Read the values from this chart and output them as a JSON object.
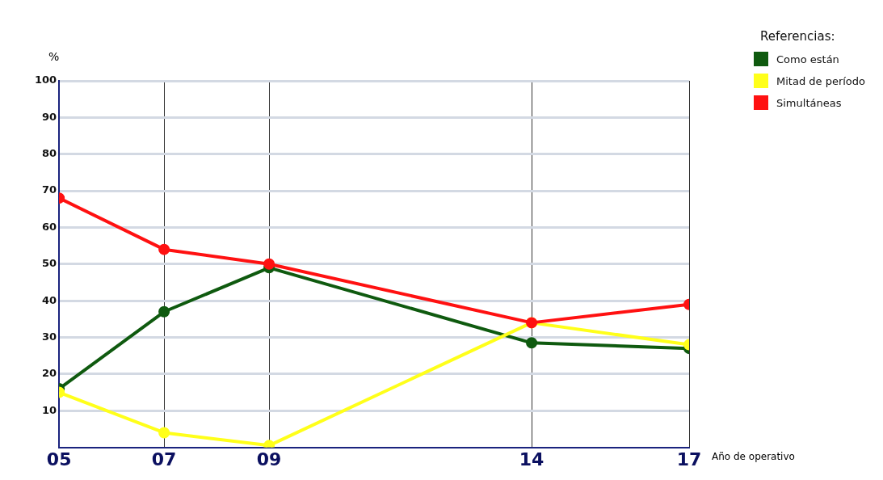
{
  "chart_data": {
    "type": "line",
    "ylabel": "%",
    "xlabel": "Año de operativo",
    "legend_title": "Referencias:",
    "legend": "top right",
    "grid": true,
    "marker": "circle",
    "line_style": "solid",
    "x": [
      5,
      7,
      9,
      14,
      17
    ],
    "xlim": [
      5,
      17
    ],
    "xticks": [
      {
        "value": 5,
        "label": "05"
      },
      {
        "value": 7,
        "label": "07"
      },
      {
        "value": 9,
        "label": "09"
      },
      {
        "value": 14,
        "label": "14"
      },
      {
        "value": 17,
        "label": "17"
      }
    ],
    "ylim": [
      0,
      100
    ],
    "yticks": [
      10,
      20,
      30,
      40,
      50,
      60,
      70,
      80,
      90,
      100
    ],
    "series": [
      {
        "name": "Como están",
        "color": "#0f5a0f",
        "values": [
          16,
          37,
          49,
          28.5,
          27
        ]
      },
      {
        "name": "Mitad de período",
        "color": "#ffff1a",
        "values": [
          15,
          4,
          0.5,
          34,
          28
        ]
      },
      {
        "name": "Simultáneas",
        "color": "#ff1111",
        "values": [
          68,
          54,
          50,
          34,
          39
        ]
      }
    ]
  }
}
